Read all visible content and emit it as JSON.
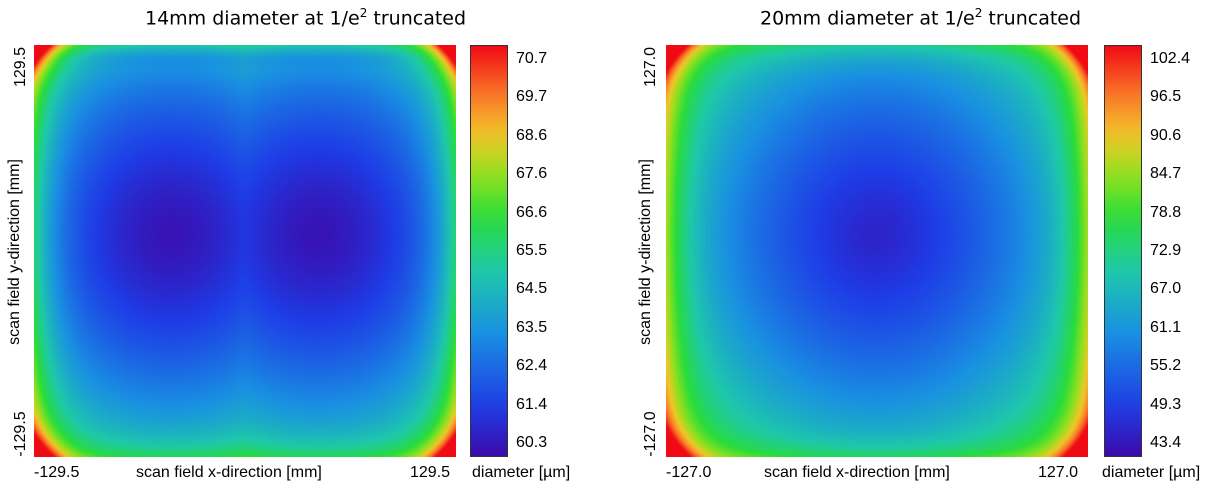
{
  "charts": [
    {
      "title_main": "14mm diameter at 1/e",
      "title_sup": "2",
      "title_tail": " truncated",
      "xlabel": "scan field x-direction [mm]",
      "ylabel": "scan field y-direction [mm]",
      "x_min_label": "-129.5",
      "x_max_label": "129.5",
      "y_min_label": "-129.5",
      "y_max_label": "129.5",
      "colorbar_label": "diameter [µm]",
      "colorbar_ticks": [
        "70.7",
        "69.7",
        "68.6",
        "67.6",
        "66.6",
        "65.5",
        "64.5",
        "63.5",
        "62.4",
        "61.4",
        "60.3"
      ]
    },
    {
      "title_main": "20mm diameter at 1/e",
      "title_sup": "2",
      "title_tail": " truncated",
      "xlabel": "scan field x-direction [mm]",
      "ylabel": "scan field y-direction [mm]",
      "x_min_label": "-127.0",
      "x_max_label": "127.0",
      "y_min_label": "-127.0",
      "y_max_label": "127.0",
      "colorbar_label": "diameter [µm]",
      "colorbar_ticks": [
        "102.4",
        "96.5",
        "90.6",
        "84.7",
        "78.8",
        "72.9",
        "67.0",
        "61.1",
        "55.2",
        "49.3",
        "43.4"
      ]
    }
  ],
  "chart_data": [
    {
      "type": "heatmap",
      "title": "14mm diameter at 1/e2 truncated",
      "xlabel": "scan field x-direction [mm]",
      "ylabel": "scan field y-direction [mm]",
      "xlim": [
        -129.5,
        129.5
      ],
      "ylim": [
        -129.5,
        129.5
      ],
      "value_label": "diameter [µm]",
      "value_range": [
        60.3,
        70.7
      ],
      "colormap": "rainbow (blue-cyan-green-yellow-red)",
      "pattern": "two minima near (-45, 10) and (45, 10) at ~60.3 µm; edges ~63-65 µm; corners reach ~70.7 µm",
      "minima_centers": [
        [
          -45,
          10
        ],
        [
          45,
          10
        ]
      ]
    },
    {
      "type": "heatmap",
      "title": "20mm diameter at 1/e2 truncated",
      "xlabel": "scan field x-direction [mm]",
      "ylabel": "scan field y-direction [mm]",
      "xlim": [
        -127.0,
        127.0
      ],
      "ylim": [
        -127.0,
        127.0
      ],
      "value_label": "diameter [µm]",
      "value_range": [
        43.4,
        102.4
      ],
      "colormap": "rainbow (blue-cyan-green-yellow-red)",
      "pattern": "single minimum near center (0, 10) at ~43.4 µm; edges ~55-72 µm; corners reach ~102.4 µm",
      "minima_centers": [
        [
          0,
          10
        ]
      ]
    }
  ]
}
